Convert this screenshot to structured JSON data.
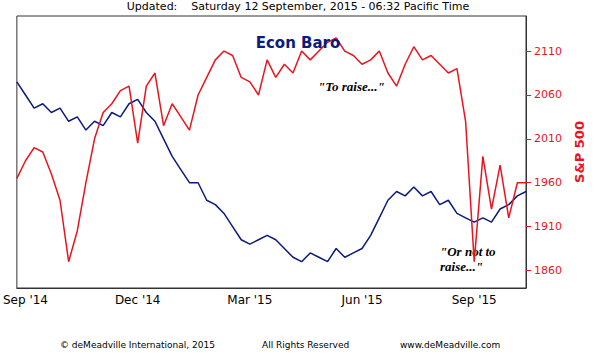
{
  "chart_data": {
    "type": "line",
    "header": "Updated:    Saturday 12 September, 2015 - 06:32 Pacific Time",
    "title": "Econ Baro",
    "ylabel": "S&P 500",
    "annotations": [
      "\"To raise...\"",
      "\"Or not to raise...\""
    ],
    "footer": [
      "© deMeadville International, 2015",
      "All Rights Reserved",
      "www.deMeadville.com"
    ],
    "categories": [
      null,
      "Sep '14",
      null,
      null,
      null,
      null,
      null,
      null,
      null,
      null,
      null,
      null,
      null,
      null,
      "Dec '14",
      null,
      null,
      null,
      null,
      null,
      null,
      null,
      null,
      null,
      null,
      null,
      null,
      "Mar '15",
      null,
      null,
      null,
      null,
      null,
      null,
      null,
      null,
      null,
      null,
      null,
      null,
      "Jun '15",
      null,
      null,
      null,
      null,
      null,
      null,
      null,
      null,
      null,
      null,
      null,
      null,
      "Sep '15",
      null,
      null,
      null,
      null,
      null,
      null
    ],
    "series": [
      {
        "color": "#0a1a80",
        "values": [
          2075,
          2060,
          2045,
          2050,
          2040,
          2045,
          2030,
          2035,
          2020,
          2030,
          2025,
          2040,
          2035,
          2050,
          2055,
          2040,
          2030,
          2010,
          1990,
          1975,
          1960,
          1960,
          1940,
          1935,
          1925,
          1910,
          1895,
          1890,
          1895,
          1900,
          1895,
          1885,
          1875,
          1870,
          1880,
          1875,
          1870,
          1885,
          1875,
          1880,
          1885,
          1900,
          1920,
          1940,
          1950,
          1945,
          1955,
          1945,
          1950,
          1935,
          1940,
          1925,
          1920,
          1915,
          1920,
          1915,
          1930,
          1935,
          1945,
          1950
        ]
      },
      {
        "color": "#e8141e",
        "values": [
          1965,
          1985,
          2000,
          1995,
          1970,
          1940,
          1870,
          1905,
          1960,
          2010,
          2040,
          2050,
          2065,
          2070,
          2005,
          2070,
          2085,
          2025,
          2050,
          2035,
          2020,
          2060,
          2080,
          2100,
          2110,
          2105,
          2080,
          2075,
          2060,
          2100,
          2080,
          2095,
          2085,
          2110,
          2100,
          2110,
          2120,
          2125,
          2110,
          2105,
          2095,
          2100,
          2110,
          2085,
          2070,
          2095,
          2115,
          2100,
          2105,
          2095,
          2085,
          2090,
          2030,
          1870,
          1990,
          1930,
          1980,
          1920,
          1960,
          1960
        ]
      }
    ],
    "ylim": [
      1840,
      2150
    ],
    "yticks": [
      1860,
      1910,
      1960,
      2010,
      2060,
      2110
    ],
    "grid": false
  }
}
